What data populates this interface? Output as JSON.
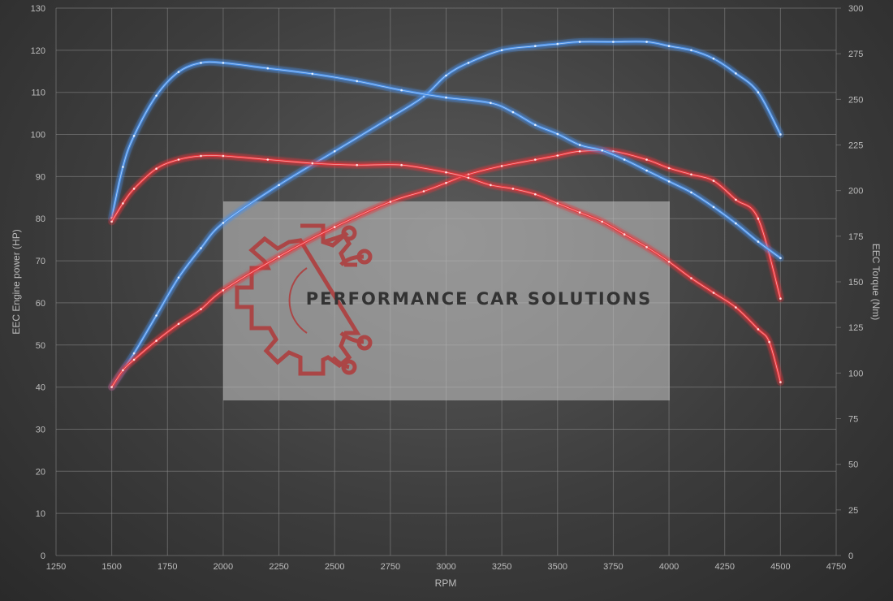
{
  "chart_data": {
    "type": "line",
    "xlabel": "RPM",
    "ylabel": "EEC Engine power (HP)",
    "y2label": "EEC Torque (Nm)",
    "xlim": [
      1250,
      4750
    ],
    "ylim": [
      0,
      130
    ],
    "y2lim": [
      0,
      300
    ],
    "xticks": [
      "1250",
      "1500",
      "1750",
      "2000",
      "2250",
      "2500",
      "2750",
      "3000",
      "3250",
      "3500",
      "3750",
      "4000",
      "4250",
      "4500",
      "4750"
    ],
    "yticks": [
      "0",
      "10",
      "20",
      "30",
      "40",
      "50",
      "60",
      "70",
      "80",
      "90",
      "100",
      "110",
      "120",
      "130"
    ],
    "y2ticks": [
      "0",
      "25",
      "50",
      "75",
      "100",
      "125",
      "150",
      "175",
      "200",
      "225",
      "250",
      "275",
      "300"
    ],
    "grid": true,
    "legend": "none",
    "series": [
      {
        "axis": "left",
        "color": "#4a90e8",
        "x": [
          1500,
          1550,
          1600,
          1700,
          1800,
          1900,
          2000,
          2250,
          2500,
          2750,
          2900,
          3000,
          3100,
          3250,
          3400,
          3500,
          3600,
          3750,
          3900,
          4000,
          4100,
          4200,
          4300,
          4400,
          4500
        ],
        "values": [
          40,
          44,
          48,
          57,
          66,
          73,
          79,
          88,
          96,
          104,
          109,
          114,
          117,
          120,
          121,
          121.5,
          122,
          122,
          122,
          121,
          120,
          118,
          114.5,
          110,
          100
        ]
      },
      {
        "axis": "left",
        "color": "#e8353a",
        "x": [
          1500,
          1550,
          1600,
          1700,
          1800,
          1900,
          2000,
          2250,
          2500,
          2750,
          2900,
          3000,
          3100,
          3250,
          3400,
          3500,
          3600,
          3750,
          3900,
          4000,
          4100,
          4200,
          4300,
          4400,
          4500
        ],
        "values": [
          40,
          44,
          46.5,
          51,
          55,
          58.5,
          63,
          71,
          78,
          84,
          86.5,
          88.5,
          90.5,
          92.5,
          94,
          95,
          96,
          96,
          94,
          92,
          90.5,
          89,
          84.5,
          80,
          61
        ]
      },
      {
        "axis": "right",
        "color": "#4a90e8",
        "x": [
          1500,
          1550,
          1600,
          1700,
          1800,
          1900,
          2000,
          2200,
          2400,
          2600,
          2800,
          3000,
          3200,
          3300,
          3400,
          3500,
          3600,
          3700,
          3800,
          3900,
          4000,
          4100,
          4200,
          4300,
          4400,
          4500
        ],
        "values": [
          185,
          213,
          230,
          252,
          265,
          270,
          270,
          267,
          264,
          260,
          255,
          251,
          248,
          243,
          236,
          231,
          225,
          222,
          217,
          211,
          205,
          199,
          191,
          182,
          172,
          163
        ]
      },
      {
        "axis": "right",
        "color": "#e8353a",
        "x": [
          1500,
          1550,
          1600,
          1700,
          1800,
          1900,
          2000,
          2200,
          2400,
          2600,
          2800,
          3000,
          3100,
          3200,
          3300,
          3400,
          3500,
          3600,
          3700,
          3800,
          3900,
          4000,
          4100,
          4200,
          4300,
          4400,
          4450,
          4500
        ],
        "values": [
          183,
          193,
          201,
          212,
          217,
          219,
          219,
          217,
          215,
          214,
          214,
          210,
          207,
          203,
          201,
          198,
          193,
          188,
          183,
          176,
          169,
          161,
          152,
          144,
          136,
          124,
          117,
          95
        ]
      }
    ]
  },
  "watermark": {
    "text": "PERFORMANCE CAR SOLUTIONS",
    "logo": "gear-circuit-icon"
  }
}
